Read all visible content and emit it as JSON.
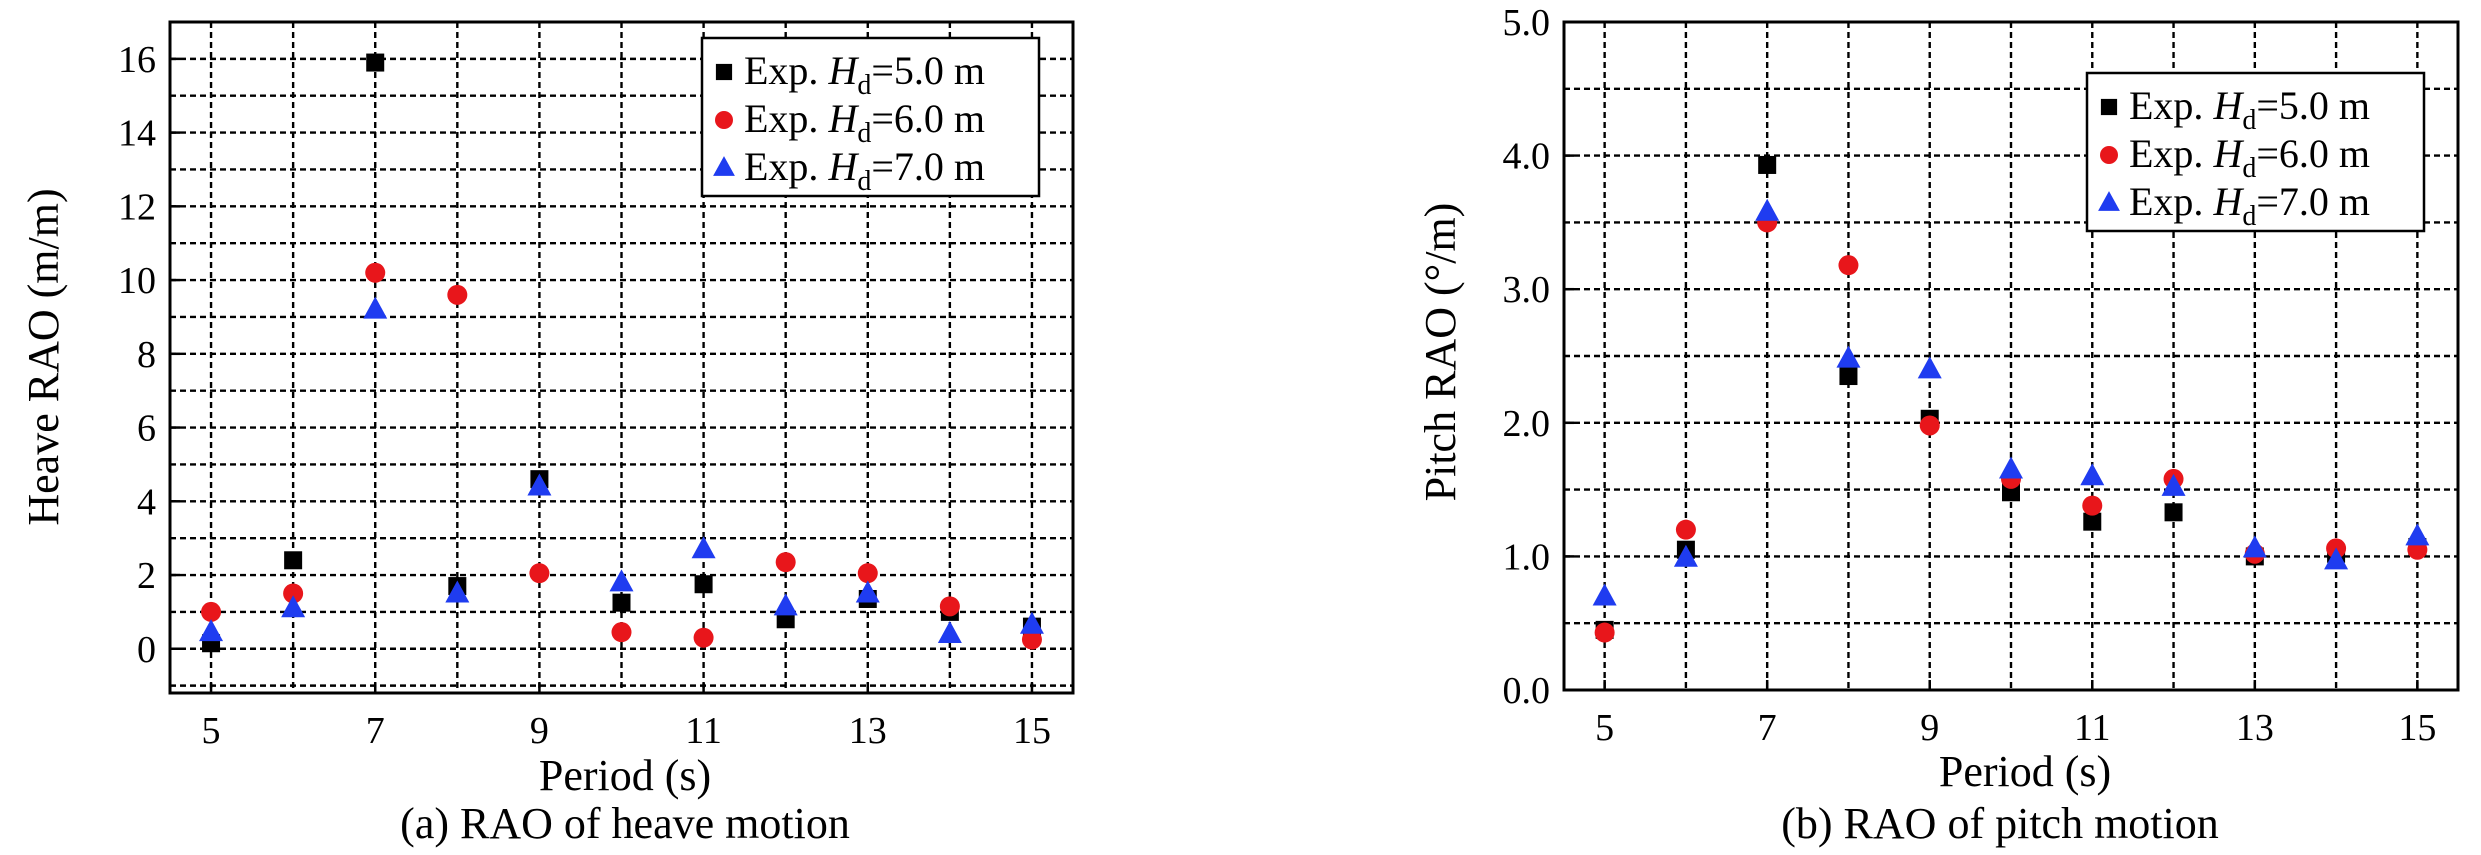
{
  "chart_data": [
    {
      "type": "scatter",
      "caption": "(a) RAO of heave motion",
      "xlabel": "Period (s)",
      "ylabel": "Heave RAO (m/m)",
      "xlim": [
        4.5,
        15.5
      ],
      "ylim": [
        -1.2,
        17
      ],
      "xticks": [
        5,
        7,
        9,
        11,
        13,
        15
      ],
      "yticks": [
        0,
        2,
        4,
        6,
        8,
        10,
        12,
        14,
        16
      ],
      "x_minor_grid_step": 1,
      "y_minor_grid_step": 1,
      "grid": true,
      "legend_position": "top-right",
      "series": [
        {
          "name": "Exp. Hd=5.0 m",
          "legend_prefix": "Exp. ",
          "legend_var": "H",
          "legend_sub": "d",
          "legend_suffix": "=5.0 m",
          "marker": "square",
          "color": "#000000",
          "x": [
            5,
            6,
            7,
            8,
            9,
            10,
            11,
            12,
            13,
            14,
            15
          ],
          "y": [
            0.15,
            2.4,
            15.9,
            1.7,
            4.6,
            1.25,
            1.75,
            0.8,
            1.35,
            1.0,
            0.6
          ]
        },
        {
          "name": "Exp. Hd=6.0 m",
          "legend_prefix": "Exp. ",
          "legend_var": "H",
          "legend_sub": "d",
          "legend_suffix": "=6.0 m",
          "marker": "circle",
          "color": "#e8161b",
          "x": [
            5,
            6,
            7,
            8,
            9,
            10,
            11,
            12,
            13,
            14,
            15
          ],
          "y": [
            1.0,
            1.5,
            10.2,
            9.6,
            2.05,
            0.45,
            0.3,
            2.35,
            2.05,
            1.15,
            0.25
          ]
        },
        {
          "name": "Exp. Hd=7.0 m",
          "legend_prefix": "Exp. ",
          "legend_var": "H",
          "legend_sub": "d",
          "legend_suffix": "=7.0 m",
          "marker": "triangle",
          "color": "#1f3cf0",
          "x": [
            5,
            6,
            7,
            8,
            9,
            10,
            11,
            12,
            13,
            14,
            15
          ],
          "y": [
            0.45,
            1.1,
            9.2,
            1.5,
            4.4,
            1.8,
            2.7,
            1.15,
            1.5,
            0.4,
            0.65
          ]
        }
      ]
    },
    {
      "type": "scatter",
      "caption": "(b) RAO of pitch motion",
      "xlabel": "Period (s)",
      "ylabel": "Pitch RAO (°/m)",
      "xlim": [
        4.5,
        15.5
      ],
      "ylim": [
        0,
        5.0
      ],
      "xticks": [
        5,
        7,
        9,
        11,
        13,
        15
      ],
      "yticks": [
        "0.0",
        "1.0",
        "2.0",
        "3.0",
        "4.0",
        "5.0"
      ],
      "x_minor_grid_step": 1,
      "y_minor_grid_step": 0.5,
      "grid": true,
      "legend_position": "top-right",
      "series": [
        {
          "name": "Exp. Hd=5.0 m",
          "legend_prefix": "Exp. ",
          "legend_var": "H",
          "legend_sub": "d",
          "legend_suffix": "=5.0 m",
          "marker": "square",
          "color": "#000000",
          "x": [
            5,
            6,
            7,
            8,
            9,
            10,
            11,
            12,
            13,
            14,
            15
          ],
          "y": [
            0.45,
            1.05,
            3.93,
            2.35,
            2.03,
            1.48,
            1.26,
            1.33,
            1.0,
            1.02,
            1.07
          ]
        },
        {
          "name": "Exp. Hd=6.0 m",
          "legend_prefix": "Exp. ",
          "legend_var": "H",
          "legend_sub": "d",
          "legend_suffix": "=6.0 m",
          "marker": "circle",
          "color": "#e8161b",
          "x": [
            5,
            6,
            7,
            8,
            9,
            10,
            11,
            12,
            13,
            14,
            15
          ],
          "y": [
            0.43,
            1.2,
            3.5,
            3.18,
            1.98,
            1.58,
            1.38,
            1.58,
            1.02,
            1.06,
            1.05
          ]
        },
        {
          "name": "Exp. Hd=7.0 m",
          "legend_prefix": "Exp. ",
          "legend_var": "H",
          "legend_sub": "d",
          "legend_suffix": "=7.0 m",
          "marker": "triangle",
          "color": "#1f3cf0",
          "x": [
            5,
            6,
            7,
            8,
            9,
            10,
            11,
            12,
            13,
            14,
            15
          ],
          "y": [
            0.7,
            0.99,
            3.58,
            2.48,
            2.4,
            1.65,
            1.6,
            1.52,
            1.06,
            0.97,
            1.15
          ]
        }
      ]
    }
  ]
}
